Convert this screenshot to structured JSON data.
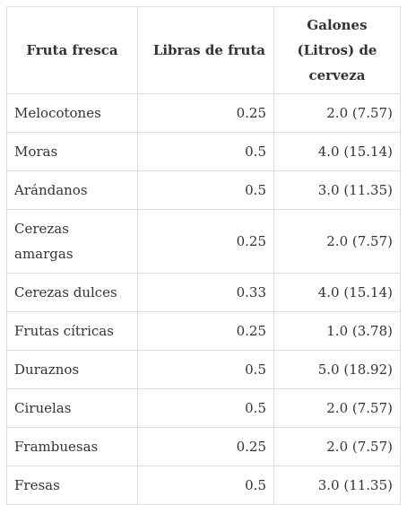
{
  "table": {
    "headers": {
      "fruit": "Fruta fresca",
      "pounds": "Libras de fruta",
      "gallons": "Galones (Litros) de cerveza"
    },
    "rows": [
      {
        "fruit": "Melocotones",
        "pounds": "0.25",
        "gallons": "2.0 (7.57)"
      },
      {
        "fruit": "Moras",
        "pounds": "0.5",
        "gallons": "4.0 (15.14)"
      },
      {
        "fruit": "Arándanos",
        "pounds": "0.5",
        "gallons": "3.0 (11.35)"
      },
      {
        "fruit": "Cerezas amargas",
        "pounds": "0.25",
        "gallons": "2.0 (7.57)"
      },
      {
        "fruit": "Cerezas dulces",
        "pounds": "0.33",
        "gallons": "4.0 (15.14)"
      },
      {
        "fruit": "Frutas cítricas",
        "pounds": "0.25",
        "gallons": "1.0 (3.78)"
      },
      {
        "fruit": "Duraznos",
        "pounds": "0.5",
        "gallons": "5.0 (18.92)"
      },
      {
        "fruit": "Ciruelas",
        "pounds": "0.5",
        "gallons": "2.0 (7.57)"
      },
      {
        "fruit": "Frambuesas",
        "pounds": "0.25",
        "gallons": "2.0 (7.57)"
      },
      {
        "fruit": "Fresas",
        "pounds": "0.5",
        "gallons": "3.0 (11.35)"
      }
    ]
  }
}
